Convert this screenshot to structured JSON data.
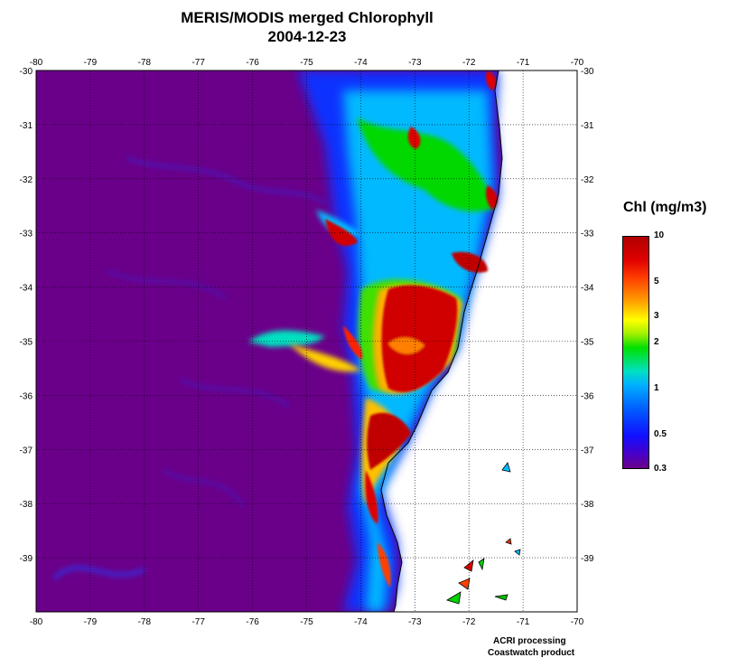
{
  "title": "MERIS/MODIS merged Chlorophyll",
  "date": "2004-12-23",
  "map": {
    "lon_ticks": [
      "-80",
      "-79",
      "-78",
      "-77",
      "-76",
      "-75",
      "-74",
      "-73",
      "-72",
      "-71",
      "-70"
    ],
    "lat_ticks": [
      "-30",
      "-31",
      "-32",
      "-33",
      "-34",
      "-35",
      "-36",
      "-37",
      "-38",
      "-39"
    ],
    "lon_range": [
      -80,
      -70
    ],
    "lat_range": [
      -40,
      -30
    ],
    "grid": "dotted",
    "ocean_color": "#6a008a",
    "land_color": "#ffffff"
  },
  "legend": {
    "title": "Chl (mg/m3)",
    "scale": "log",
    "range": [
      0.3,
      10
    ],
    "labels": [
      "10",
      "5",
      "3",
      "2",
      "1",
      "0.5",
      "0.3"
    ]
  },
  "credits": {
    "line1": "ACRI processing",
    "line2": "Coastwatch product"
  }
}
